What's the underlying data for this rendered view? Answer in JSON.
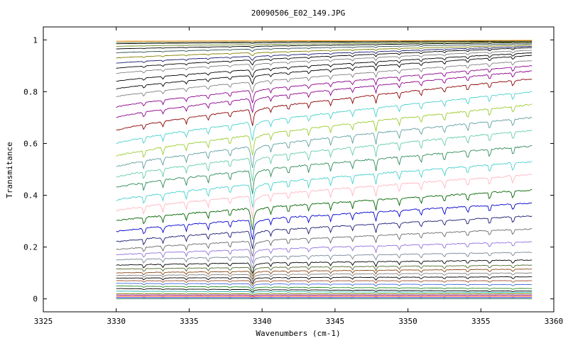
{
  "chart_data": {
    "type": "line",
    "title": "20090506_E02_149.JPG",
    "xlabel": "Wavenumbers (cm-1)",
    "ylabel": "Transmitance",
    "xlim": [
      3325,
      3360
    ],
    "ylim": [
      -0.05,
      1.05
    ],
    "x_ticks": [
      "3325",
      "3330",
      "3335",
      "3340",
      "3345",
      "3350",
      "3355",
      "3360"
    ],
    "y_ticks": [
      "0",
      "0.2",
      "0.4",
      "0.6",
      "0.8",
      "1"
    ],
    "x_tick_values": [
      3325,
      3330,
      3335,
      3340,
      3345,
      3350,
      3355,
      3360
    ],
    "y_tick_values": [
      0,
      0.2,
      0.4,
      0.6,
      0.8,
      1.0
    ],
    "data_x_range": [
      3330,
      3358.5
    ],
    "grid": false,
    "legend": "none",
    "series_count": 44,
    "series_start_levels": [
      0.0,
      0.005,
      0.01,
      0.015,
      0.02,
      0.03,
      0.04,
      0.05,
      0.06,
      0.07,
      0.08,
      0.09,
      0.1,
      0.115,
      0.13,
      0.15,
      0.17,
      0.19,
      0.22,
      0.26,
      0.3,
      0.34,
      0.38,
      0.43,
      0.47,
      0.51,
      0.55,
      0.6,
      0.65,
      0.7,
      0.74,
      0.78,
      0.81,
      0.84,
      0.87,
      0.89,
      0.91,
      0.93,
      0.95,
      0.965,
      0.975,
      0.985,
      0.99,
      0.995
    ],
    "series_end_levels": [
      0.0,
      0.005,
      0.01,
      0.015,
      0.02,
      0.025,
      0.03,
      0.04,
      0.055,
      0.07,
      0.085,
      0.1,
      0.115,
      0.13,
      0.15,
      0.18,
      0.22,
      0.27,
      0.32,
      0.37,
      0.42,
      0.48,
      0.53,
      0.59,
      0.65,
      0.7,
      0.75,
      0.8,
      0.85,
      0.88,
      0.9,
      0.92,
      0.94,
      0.95,
      0.96,
      0.97,
      0.975,
      0.98,
      0.985,
      0.99,
      0.992,
      0.995,
      0.997,
      0.998
    ],
    "series_colors": [
      "#2e8b57",
      "#0000cd",
      "#ff4500",
      "#8b008b",
      "#808000",
      "#20b2aa",
      "#000000",
      "#228b22",
      "#4169e1",
      "#a0522d",
      "#000000",
      "#808080",
      "#8b4513",
      "#556b2f",
      "#000000",
      "#778899",
      "#9370db",
      "#696969",
      "#191970",
      "#0000cd",
      "#006400",
      "#ffb6c1",
      "#48d1cc",
      "#2e8b57",
      "#66cdaa",
      "#5f9ea0",
      "#9acd32",
      "#48d1cc",
      "#8b0000",
      "#8b008b",
      "#8b008b",
      "#808080",
      "#000000",
      "#000000",
      "#808080",
      "#000000",
      "#191970",
      "#808000",
      "#2f4f4f",
      "#000000",
      "#6b8e23",
      "#000000",
      "#556b2f",
      "#ff8c00"
    ],
    "absorption_lines": [
      3331.9,
      3333.2,
      3334.8,
      3336.3,
      3337.8,
      3339.3,
      3340.6,
      3341.8,
      3343.2,
      3344.7,
      3346.2,
      3347.8,
      3349.4,
      3350.9,
      3352.5,
      3354.1,
      3355.6,
      3357.2
    ]
  }
}
